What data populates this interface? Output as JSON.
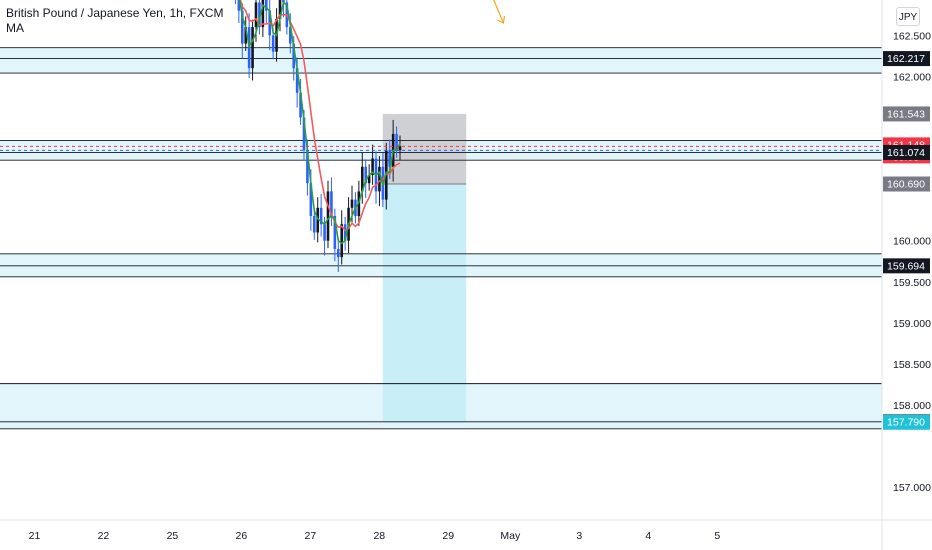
{
  "legend": {
    "symbol": "British Pound / Japanese Yen, 1h, FXCM",
    "indicator": "MA"
  },
  "currency_label": "JPY",
  "countdown": "09:08",
  "colors": {
    "zone_fill": "#e1f5fb",
    "position_target": "#c8eef7",
    "position_stop": "#cfd0d4",
    "ma_fast": "#2e9e3e",
    "ma_slow": "#f25c5c",
    "bull": "#131722",
    "bear": "#2962ff",
    "last_price_badge": "#f23645",
    "level_badge": "#131722",
    "trade_badge": "#787b86",
    "cyan_badge": "#20c2d8",
    "arrow": "#f5a623"
  },
  "chart_data": {
    "type": "candlestick",
    "y_axis": {
      "min": 156.6,
      "max": 162.93,
      "ticks": [
        "157.000",
        "158.000",
        "158.500",
        "159.000",
        "159.500",
        "160.000",
        "162.000",
        "162.500"
      ]
    },
    "x_axis": {
      "min": 20.5,
      "max": 35.0,
      "ticks": [
        {
          "label": "21",
          "x": 21
        },
        {
          "label": "22",
          "x": 22
        },
        {
          "label": "25",
          "x": 23
        },
        {
          "label": "26",
          "x": 24
        },
        {
          "label": "27",
          "x": 25
        },
        {
          "label": "28",
          "x": 26
        },
        {
          "label": "29",
          "x": 27
        },
        {
          "label": "May",
          "x": 27.9
        },
        {
          "label": "3",
          "x": 28.9
        },
        {
          "label": "4",
          "x": 29.9
        },
        {
          "label": "5",
          "x": 30.9
        }
      ]
    },
    "price_badges": [
      {
        "value": "162.217",
        "price": 162.217,
        "kind": "level"
      },
      {
        "value": "161.543",
        "price": 161.543,
        "kind": "trade"
      },
      {
        "value": "161.148",
        "price": 161.148,
        "kind": "last"
      },
      {
        "value": "161.074",
        "price": 161.074,
        "kind": "level"
      },
      {
        "value": "160.690",
        "price": 160.69,
        "kind": "trade"
      },
      {
        "value": "159.694",
        "price": 159.694,
        "kind": "level"
      },
      {
        "value": "157.795",
        "price": 157.795,
        "kind": "level"
      },
      {
        "value": "157.790",
        "price": 157.79,
        "kind": "cyan"
      }
    ],
    "zones": [
      {
        "top": 162.35,
        "bottom": 162.04
      },
      {
        "top": 161.22,
        "bottom": 160.98
      },
      {
        "top": 159.84,
        "bottom": 159.56
      },
      {
        "top": 158.26,
        "bottom": 157.71
      }
    ],
    "zone_lines": [
      162.35,
      162.217,
      162.04,
      161.22,
      161.074,
      160.98,
      159.84,
      159.694,
      159.56,
      158.26,
      157.795,
      157.71
    ],
    "short_position": {
      "x_start": 26.05,
      "x_end": 27.26,
      "entry": 160.69,
      "stop": 161.543,
      "target": 157.795
    },
    "arrow": {
      "x1": 27.6,
      "y1": 163.05,
      "x2": 27.8,
      "y2": 162.65
    },
    "last_price": 161.148,
    "candles_close": [
      163.2,
      163.0,
      162.8,
      162.4,
      162.6,
      162.1,
      162.6,
      162.9,
      162.6,
      163.1,
      162.8,
      162.5,
      162.3,
      162.7,
      163.1,
      162.9,
      162.6,
      162.4,
      162.1,
      161.8,
      161.5,
      161.1,
      160.7,
      160.3,
      160.1,
      160.4,
      160.2,
      160.0,
      160.6,
      160.3,
      159.9,
      159.8,
      160.2,
      160.0,
      160.4,
      160.5,
      160.3,
      160.6,
      160.9,
      160.7,
      160.8,
      161.0,
      160.6,
      160.9,
      160.5,
      161.1,
      160.9,
      161.3,
      161.1,
      161.15
    ]
  }
}
